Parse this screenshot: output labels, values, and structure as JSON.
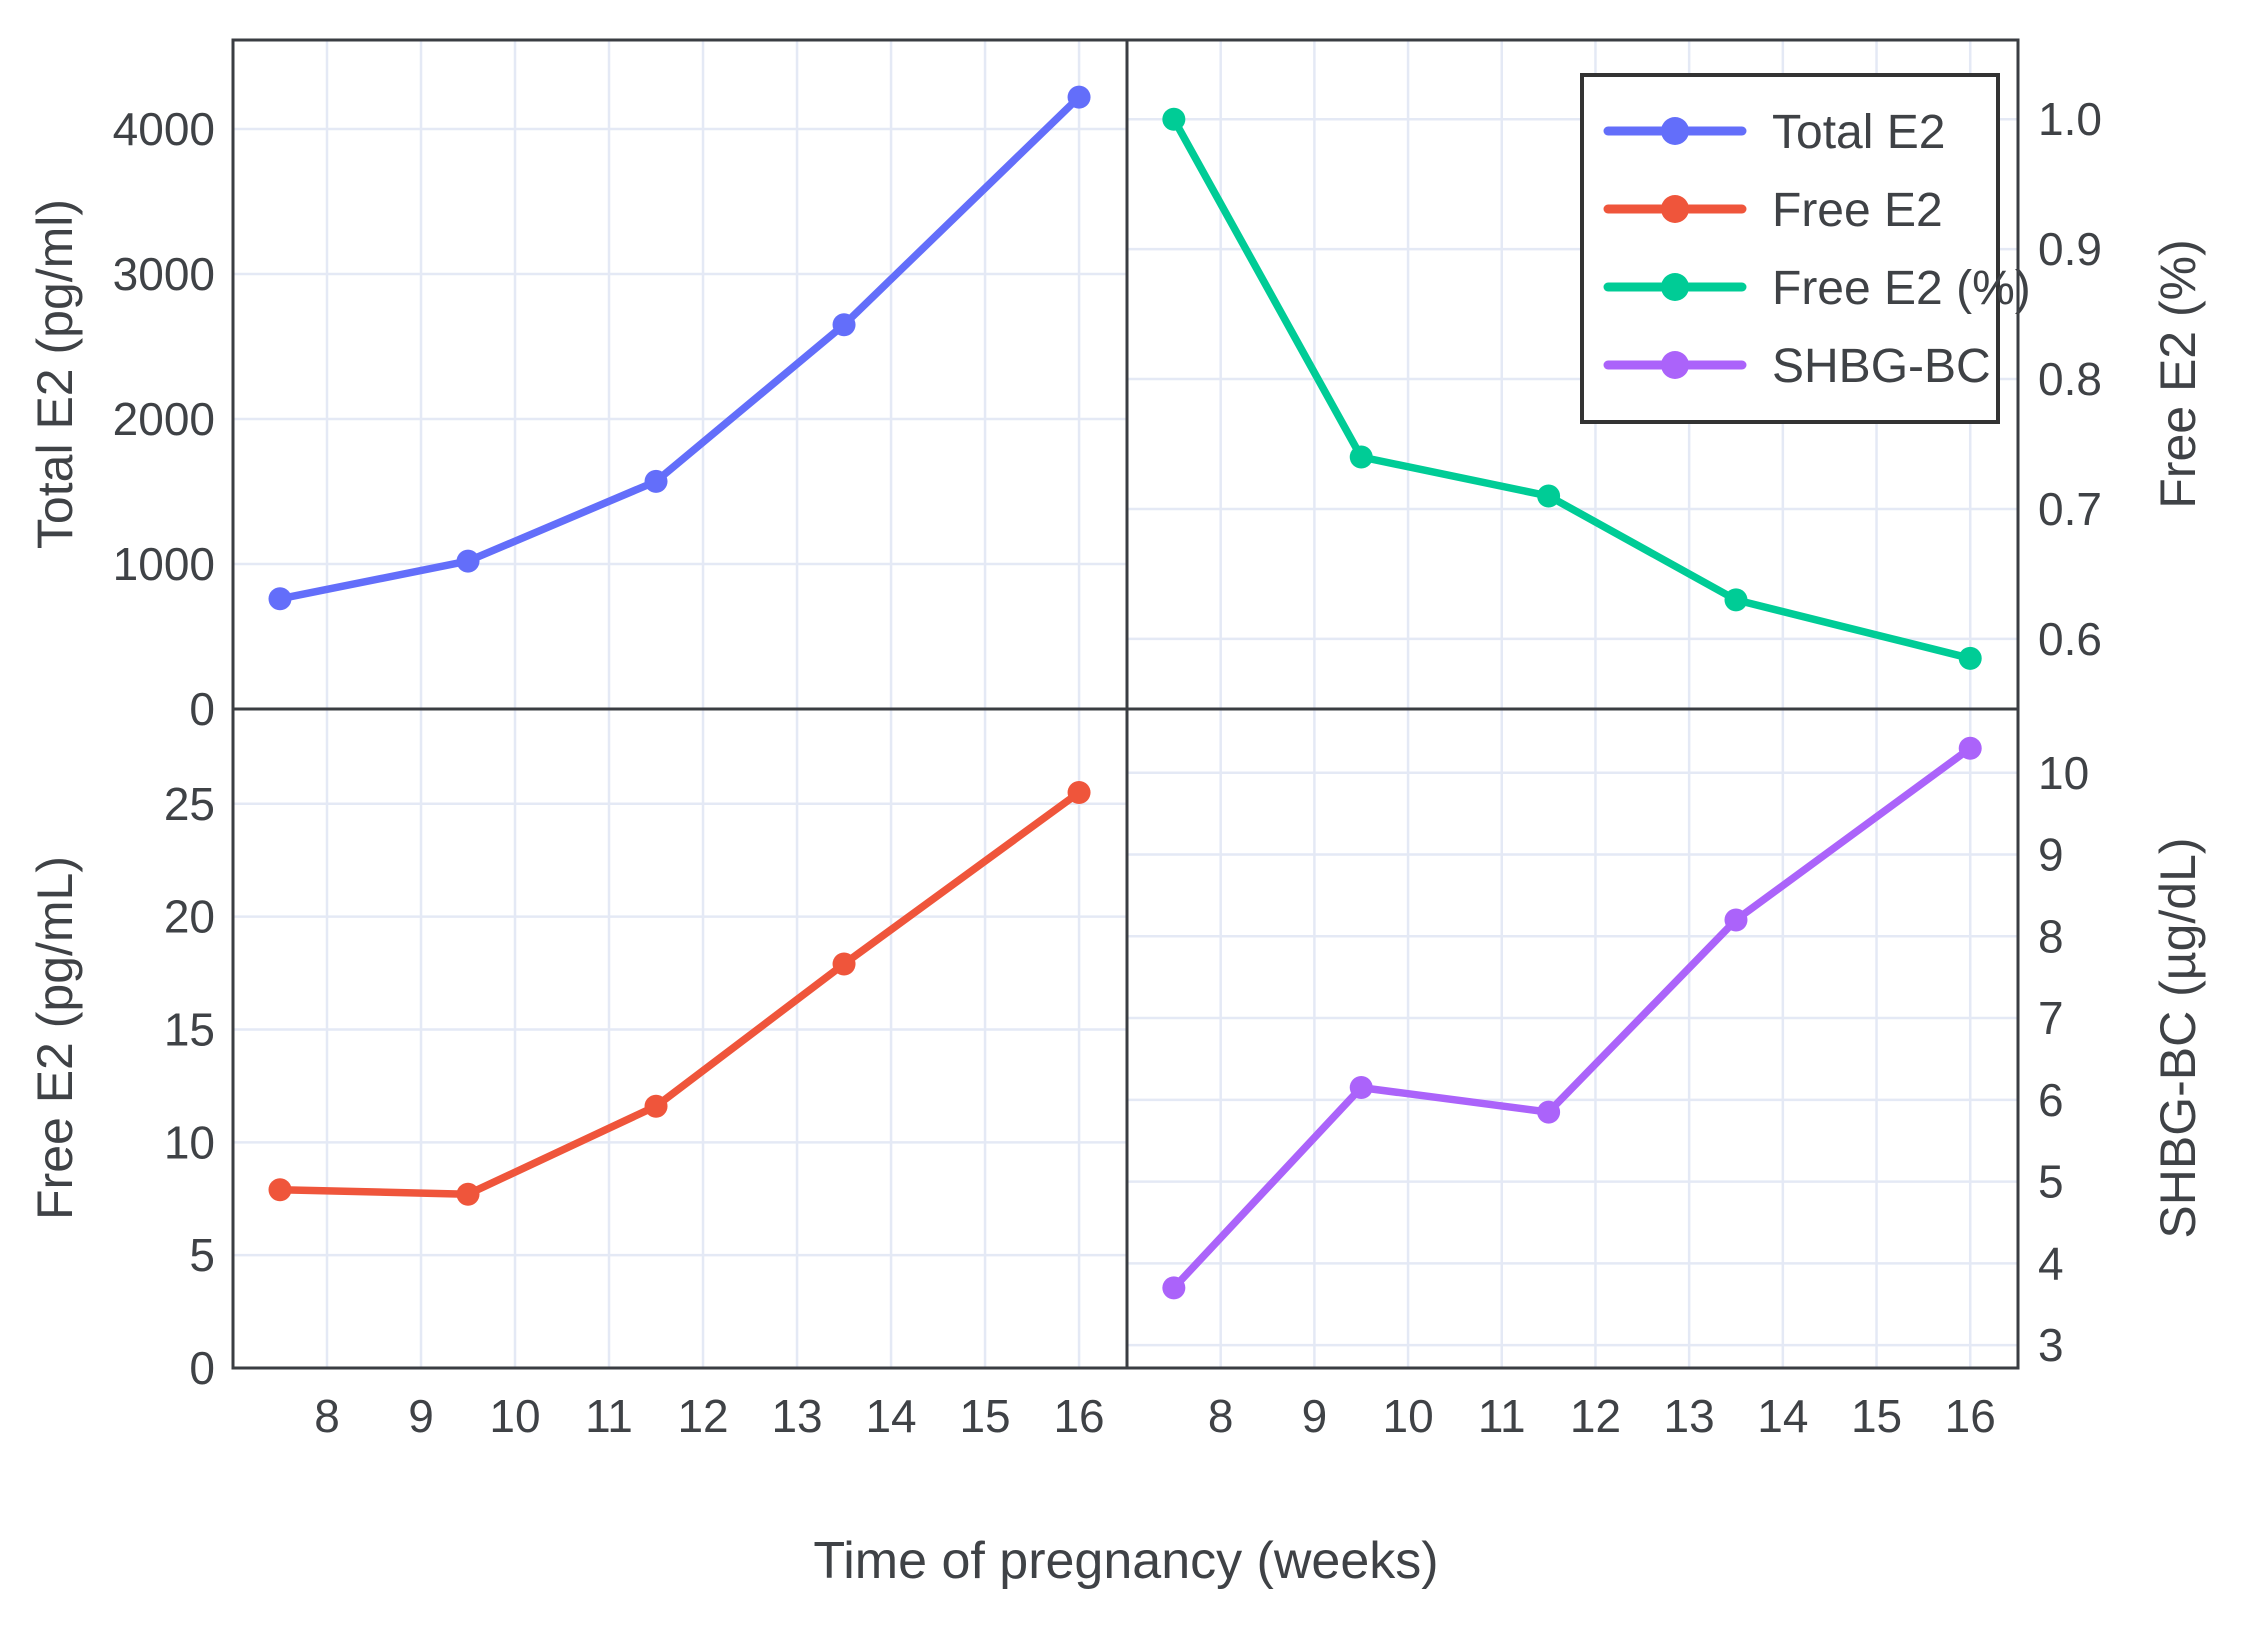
{
  "figure": {
    "xlabel": "Time of pregnancy (weeks)",
    "background_color": "#ffffff",
    "grid_color": "#e4e9f5",
    "border_color": "#3a3d42",
    "text_color": "#3f4246",
    "x_ticks": [
      8,
      9,
      10,
      11,
      12,
      13,
      14,
      15,
      16
    ],
    "x_range": [
      7.0,
      16.51
    ],
    "grid": "on"
  },
  "legend": {
    "position": "inside-top-right-panel",
    "border_color": "#333333",
    "background_color": "#ffffff",
    "entries": [
      {
        "label": "Total E2",
        "color": "#636EFA",
        "marker": "circle"
      },
      {
        "label": "Free E2",
        "color": "#EF553B",
        "marker": "circle"
      },
      {
        "label": "Free E2 (%)",
        "color": "#00CC96",
        "marker": "circle"
      },
      {
        "label": "SHBG-BC",
        "color": "#AB63FA",
        "marker": "circle"
      }
    ]
  },
  "chart_data": [
    {
      "type": "line",
      "panel": "top-left",
      "series_name": "Total E2",
      "color": "#636EFA",
      "ylabel": "Total E2 (pg/ml)",
      "y_axis_side": "left",
      "x": [
        7.5,
        9.5,
        11.5,
        13.5,
        16
      ],
      "y": [
        760,
        1020,
        1570,
        2650,
        4220
      ],
      "y_ticks": [
        0,
        1000,
        2000,
        3000,
        4000
      ],
      "y_range": [
        0,
        4614
      ],
      "decimals": 0
    },
    {
      "type": "line",
      "panel": "top-right",
      "series_name": "Free E2 (%)",
      "color": "#00CC96",
      "ylabel": "Free E2 (%)",
      "y_axis_side": "right",
      "x": [
        7.5,
        9.5,
        11.5,
        13.5,
        16
      ],
      "y": [
        1.0,
        0.74,
        0.71,
        0.63,
        0.585
      ],
      "y_ticks": [
        0.6,
        0.7,
        0.8,
        0.9,
        1.0
      ],
      "y_range": [
        0.546,
        1.061
      ],
      "decimals": 1
    },
    {
      "type": "line",
      "panel": "bottom-left",
      "series_name": "Free E2",
      "color": "#EF553B",
      "ylabel": "Free E2 (pg/mL)",
      "y_axis_side": "left",
      "x": [
        7.5,
        9.5,
        11.5,
        13.5,
        16
      ],
      "y": [
        7.9,
        7.7,
        11.6,
        17.9,
        25.5
      ],
      "y_ticks": [
        0,
        5,
        10,
        15,
        20,
        25
      ],
      "y_range": [
        0,
        29.2
      ],
      "decimals": 0
    },
    {
      "type": "line",
      "panel": "bottom-right",
      "series_name": "SHBG-BC",
      "color": "#AB63FA",
      "ylabel": "SHBG-BC (µg/dL)",
      "y_axis_side": "right",
      "x": [
        7.5,
        9.5,
        11.5,
        13.5,
        16
      ],
      "y": [
        3.7,
        6.15,
        5.85,
        8.2,
        10.3
      ],
      "y_ticks": [
        3,
        4,
        5,
        6,
        7,
        8,
        9,
        10
      ],
      "y_range": [
        2.72,
        10.78
      ],
      "decimals": 0
    }
  ]
}
